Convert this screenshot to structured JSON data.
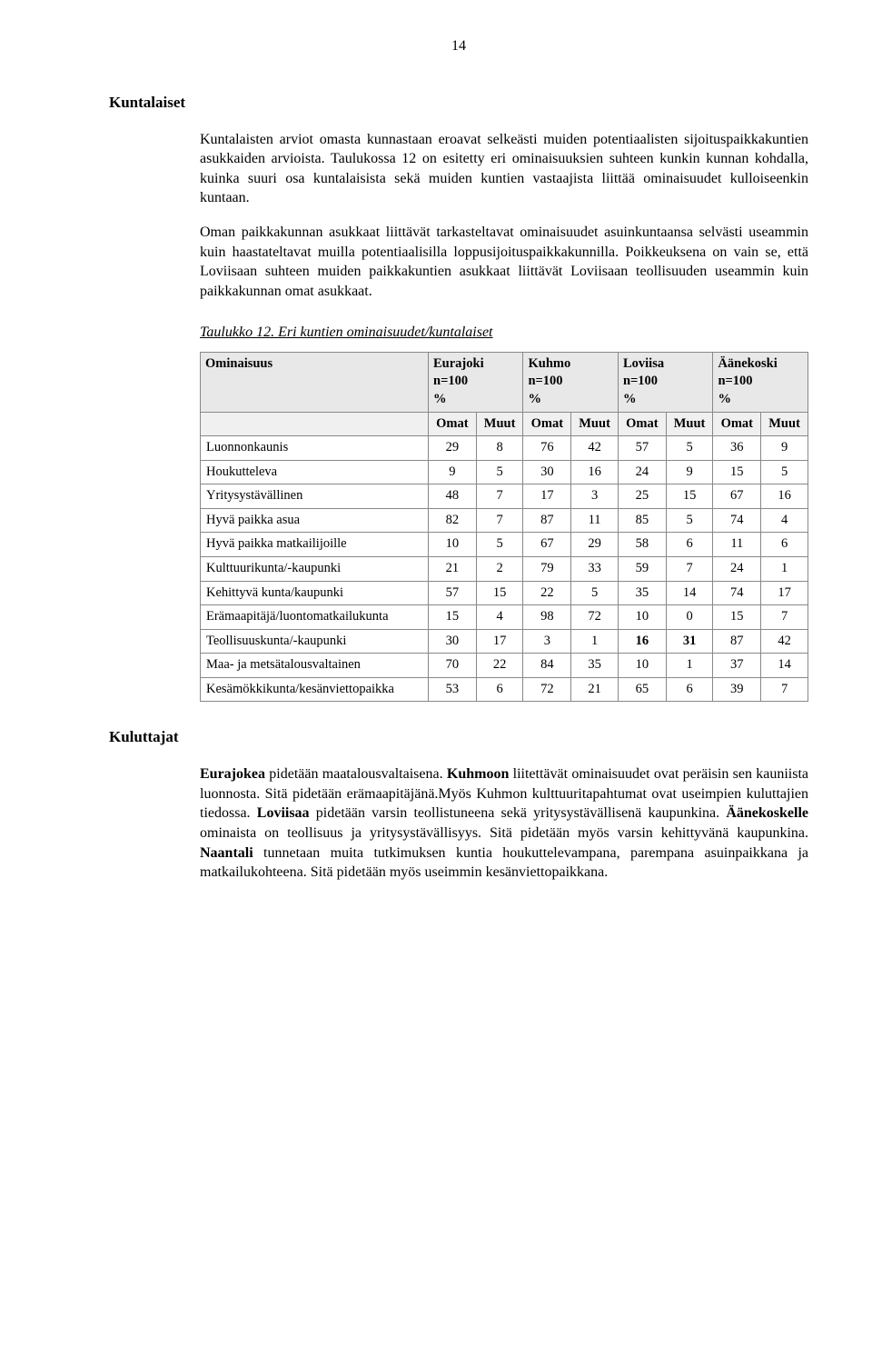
{
  "page_number": "14",
  "section1": {
    "heading": "Kuntalaiset",
    "para1": "Kuntalaisten arviot omasta kunnastaan eroavat selkeästi muiden potentiaalisten sijoituspaikkakuntien asukkaiden arvioista. Taulukossa 12 on esitetty eri ominaisuuksien suhteen kunkin kunnan kohdalla, kuinka suuri osa kuntalaisista sekä muiden kuntien vastaajista liittää ominaisuudet kulloiseenkin kuntaan.",
    "para2": "Oman paikkakunnan asukkaat liittävät tarkasteltavat ominaisuudet asuinkuntaansa selvästi useammin kuin haastateltavat muilla potentiaalisilla loppusijoituspaikkakunnilla. Poikkeuksena on vain se, että Loviisaan suhteen muiden paikkakuntien asukkaat liittävät Loviisaan teollisuuden useammin kuin paikkakunnan omat asukkaat."
  },
  "table": {
    "caption": "Taulukko 12. Eri kuntien ominaisuudet/kuntalaiset",
    "header_row1": {
      "col_ominaisuus": "Ominaisuus",
      "cols": [
        "Eurajoki",
        "Kuhmo",
        "Loviisa",
        "Äänekoski"
      ],
      "n_label": "n=100",
      "pct_label": "%"
    },
    "header_row2": {
      "omat": "Omat",
      "muut": "Muut"
    },
    "rows": [
      {
        "label": "Luonnonkaunis",
        "v": [
          "29",
          "8",
          "76",
          "42",
          "57",
          "5",
          "36",
          "9"
        ],
        "bold": []
      },
      {
        "label": "Houkutteleva",
        "v": [
          "9",
          "5",
          "30",
          "16",
          "24",
          "9",
          "15",
          "5"
        ],
        "bold": []
      },
      {
        "label": "Yritysystävällinen",
        "v": [
          "48",
          "7",
          "17",
          "3",
          "25",
          "15",
          "67",
          "16"
        ],
        "bold": []
      },
      {
        "label": "Hyvä paikka asua",
        "v": [
          "82",
          "7",
          "87",
          "11",
          "85",
          "5",
          "74",
          "4"
        ],
        "bold": []
      },
      {
        "label": "Hyvä paikka matkailijoille",
        "v": [
          "10",
          "5",
          "67",
          "29",
          "58",
          "6",
          "11",
          "6"
        ],
        "bold": []
      },
      {
        "label": "Kulttuurikunta/-kaupunki",
        "v": [
          "21",
          "2",
          "79",
          "33",
          "59",
          "7",
          "24",
          "1"
        ],
        "bold": []
      },
      {
        "label": "Kehittyvä kunta/kaupunki",
        "v": [
          "57",
          "15",
          "22",
          "5",
          "35",
          "14",
          "74",
          "17"
        ],
        "bold": []
      },
      {
        "label": "Erämaapitäjä/luontomatkailukunta",
        "v": [
          "15",
          "4",
          "98",
          "72",
          "10",
          "0",
          "15",
          "7"
        ],
        "bold": []
      },
      {
        "label": "Teollisuuskunta/-kaupunki",
        "v": [
          "30",
          "17",
          "3",
          "1",
          "16",
          "31",
          "87",
          "42"
        ],
        "bold": [
          4,
          5
        ]
      },
      {
        "label": "Maa- ja metsätalousvaltainen",
        "v": [
          "70",
          "22",
          "84",
          "35",
          "10",
          "1",
          "37",
          "14"
        ],
        "bold": []
      },
      {
        "label": "Kesämökkikunta/kesänviettopaikka",
        "v": [
          "53",
          "6",
          "72",
          "21",
          "65",
          "6",
          "39",
          "7"
        ],
        "bold": []
      }
    ]
  },
  "section2": {
    "heading": "Kuluttajat",
    "para_html": "<span class=\"bold\">Eurajokea</span> pidetään maatalousvaltaisena. <span class=\"bold\">Kuhmoon</span> liitettävät ominaisuudet ovat peräisin sen kauniista luonnosta. Sitä pidetään erämaapitäjänä.Myös Kuhmon kulttuuritapahtumat ovat useimpien kuluttajien tiedossa. <span class=\"bold\">Loviisaa</span> pidetään varsin teollistuneena sekä yritysystävällisenä kaupunkina. <span class=\"bold\">Äänekoskelle</span> ominaista on teollisuus ja yritysystävällisyys. Sitä pidetään myös varsin kehittyvänä kaupunkina. <span class=\"bold\">Naantali</span> tunnetaan muita tutkimuksen kuntia houkuttelevampana, parempana asuinpaikkana ja matkailukohteena. Sitä pidetään myös useimmin kesänviettopaikkana."
  }
}
